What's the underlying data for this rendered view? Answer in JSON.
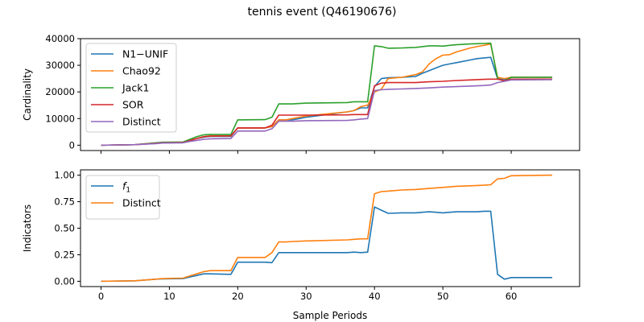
{
  "figure": {
    "title": "tennis event (Q46190676)",
    "colors": {
      "blue": "#1f77b4",
      "orange": "#ff7f0e",
      "green": "#2ca02c",
      "red": "#d62728",
      "purple": "#9467bd"
    }
  },
  "chart_data": [
    {
      "type": "line",
      "title": "tennis event (Q46190676)",
      "xlabel": "",
      "ylabel": "Cardinality",
      "xlim": [
        -3,
        70
      ],
      "ylim": [
        -2000,
        40000
      ],
      "xticks": [],
      "yticks": [
        0,
        10000,
        20000,
        30000,
        40000
      ],
      "ytick_labels": [
        "0",
        "10000",
        "20000",
        "30000",
        "40000"
      ],
      "grid": false,
      "legend_position": "upper-left",
      "series": [
        {
          "name": "N1−UNIF",
          "color": "#1f77b4",
          "x": [
            0,
            5,
            8,
            9,
            12,
            13,
            14,
            15,
            16,
            17,
            19,
            20,
            24,
            25,
            26,
            27,
            28,
            29,
            30,
            36,
            37,
            38,
            39,
            40,
            41,
            42,
            44,
            46,
            47,
            48,
            49,
            50,
            51,
            52,
            54,
            55,
            57,
            58,
            59,
            60,
            66
          ],
          "y": [
            0,
            200,
            800,
            1000,
            1100,
            1800,
            2500,
            3000,
            3300,
            3300,
            3300,
            6500,
            6500,
            7000,
            9500,
            9500,
            9500,
            10000,
            10500,
            12500,
            13000,
            14000,
            14000,
            22000,
            25000,
            25300,
            25500,
            25800,
            27000,
            28000,
            29000,
            30000,
            30500,
            31000,
            32000,
            32500,
            33000,
            25000,
            24500,
            25500,
            25500
          ]
        },
        {
          "name": "Chao92",
          "color": "#ff7f0e",
          "x": [
            0,
            5,
            8,
            9,
            12,
            13,
            14,
            15,
            16,
            17,
            19,
            20,
            24,
            25,
            26,
            27,
            28,
            29,
            30,
            36,
            37,
            38,
            39,
            40,
            41,
            42,
            44,
            46,
            47,
            48,
            49,
            50,
            51,
            52,
            54,
            55,
            56,
            57,
            58,
            59,
            60,
            66
          ],
          "y": [
            0,
            200,
            800,
            1000,
            1100,
            1800,
            2500,
            3200,
            3500,
            3500,
            3500,
            6500,
            6500,
            7000,
            9500,
            9500,
            10000,
            10500,
            11000,
            12500,
            13000,
            14500,
            15000,
            20000,
            21000,
            25000,
            25500,
            26500,
            27500,
            30500,
            32500,
            33800,
            34000,
            35000,
            36500,
            37000,
            37500,
            38000,
            25500,
            25000,
            25500,
            25500
          ]
        },
        {
          "name": "Jack1",
          "color": "#2ca02c",
          "x": [
            0,
            5,
            8,
            9,
            12,
            13,
            14,
            15,
            16,
            19,
            20,
            24,
            25,
            26,
            27,
            28,
            30,
            36,
            37,
            38,
            39,
            40,
            41,
            42,
            44,
            46,
            48,
            49,
            50,
            51,
            52,
            54,
            55,
            56,
            57,
            58,
            59,
            60,
            66
          ],
          "y": [
            0,
            200,
            900,
            1100,
            1200,
            2200,
            3200,
            3900,
            4000,
            4000,
            9500,
            9600,
            10500,
            15500,
            15500,
            15500,
            15800,
            16000,
            16300,
            16300,
            16300,
            37300,
            37000,
            36400,
            36500,
            36700,
            37300,
            37300,
            37200,
            37500,
            37700,
            38000,
            38100,
            38200,
            38300,
            25000,
            24000,
            25500,
            25500
          ]
        },
        {
          "name": "SOR",
          "color": "#d62728",
          "x": [
            0,
            5,
            8,
            9,
            12,
            13,
            14,
            15,
            16,
            19,
            20,
            24,
            25,
            26,
            27,
            28,
            30,
            36,
            37,
            38,
            39,
            40,
            41,
            42,
            44,
            46,
            48,
            50,
            52,
            54,
            56,
            57,
            58,
            59,
            60,
            66
          ],
          "y": [
            0,
            200,
            700,
            900,
            1000,
            1700,
            2500,
            3200,
            3400,
            3500,
            6500,
            6500,
            7500,
            11300,
            11300,
            11300,
            11300,
            11400,
            11500,
            11500,
            11500,
            22300,
            23300,
            23500,
            23500,
            23500,
            23800,
            24000,
            24300,
            24500,
            24700,
            24800,
            24800,
            24200,
            24800,
            24800
          ]
        },
        {
          "name": "Distinct",
          "color": "#9467bd",
          "x": [
            0,
            5,
            8,
            9,
            12,
            13,
            14,
            15,
            16,
            19,
            20,
            24,
            25,
            26,
            27,
            28,
            30,
            36,
            37,
            38,
            39,
            40,
            41,
            42,
            44,
            46,
            48,
            50,
            52,
            54,
            56,
            57,
            58,
            59,
            60,
            66
          ],
          "y": [
            0,
            200,
            600,
            800,
            900,
            1400,
            1800,
            2200,
            2400,
            2500,
            5300,
            5300,
            6200,
            9000,
            9000,
            9000,
            9200,
            9300,
            9500,
            9800,
            10000,
            20500,
            20800,
            21000,
            21100,
            21300,
            21500,
            21800,
            22000,
            22200,
            22400,
            22600,
            23500,
            24000,
            24500,
            24600
          ]
        }
      ]
    },
    {
      "type": "line",
      "title": "",
      "xlabel": "Sample Periods",
      "ylabel": "Indicators",
      "xlim": [
        -3,
        70
      ],
      "ylim": [
        -0.05,
        1.05
      ],
      "xticks": [
        0,
        10,
        20,
        30,
        40,
        50,
        60
      ],
      "xtick_labels": [
        "0",
        "10",
        "20",
        "30",
        "40",
        "50",
        "60"
      ],
      "yticks": [
        0,
        0.25,
        0.5,
        0.75,
        1.0
      ],
      "ytick_labels": [
        "0.00",
        "0.25",
        "0.50",
        "0.75",
        "1.00"
      ],
      "grid": false,
      "legend_position": "upper-left",
      "series": [
        {
          "name": "f1",
          "name_main": "f",
          "name_sub": "1",
          "color": "#1f77b4",
          "x": [
            0,
            5,
            8,
            9,
            12,
            13,
            14,
            15,
            16,
            19,
            20,
            24,
            25,
            26,
            27,
            30,
            36,
            37,
            38,
            39,
            40,
            41,
            42,
            44,
            46,
            47,
            48,
            49,
            50,
            51,
            52,
            54,
            55,
            56,
            57,
            58,
            59,
            60,
            66
          ],
          "y": [
            0,
            0.005,
            0.02,
            0.022,
            0.025,
            0.04,
            0.055,
            0.07,
            0.07,
            0.065,
            0.18,
            0.18,
            0.175,
            0.27,
            0.27,
            0.27,
            0.27,
            0.275,
            0.27,
            0.275,
            0.7,
            0.67,
            0.64,
            0.645,
            0.645,
            0.65,
            0.655,
            0.65,
            0.645,
            0.65,
            0.655,
            0.655,
            0.655,
            0.66,
            0.66,
            0.065,
            0.02,
            0.035,
            0.035
          ]
        },
        {
          "name": "Distinct",
          "color": "#ff7f0e",
          "x": [
            0,
            5,
            8,
            9,
            12,
            13,
            14,
            15,
            16,
            19,
            20,
            24,
            25,
            26,
            27,
            28,
            30,
            36,
            37,
            38,
            39,
            40,
            41,
            42,
            44,
            46,
            48,
            50,
            52,
            54,
            56,
            57,
            58,
            59,
            60,
            66
          ],
          "y": [
            0,
            0.005,
            0.02,
            0.025,
            0.03,
            0.05,
            0.07,
            0.09,
            0.1,
            0.1,
            0.225,
            0.225,
            0.27,
            0.37,
            0.37,
            0.375,
            0.38,
            0.39,
            0.395,
            0.4,
            0.4,
            0.825,
            0.845,
            0.85,
            0.86,
            0.865,
            0.875,
            0.885,
            0.895,
            0.9,
            0.905,
            0.91,
            0.965,
            0.97,
            0.995,
            1.0
          ]
        }
      ]
    }
  ]
}
